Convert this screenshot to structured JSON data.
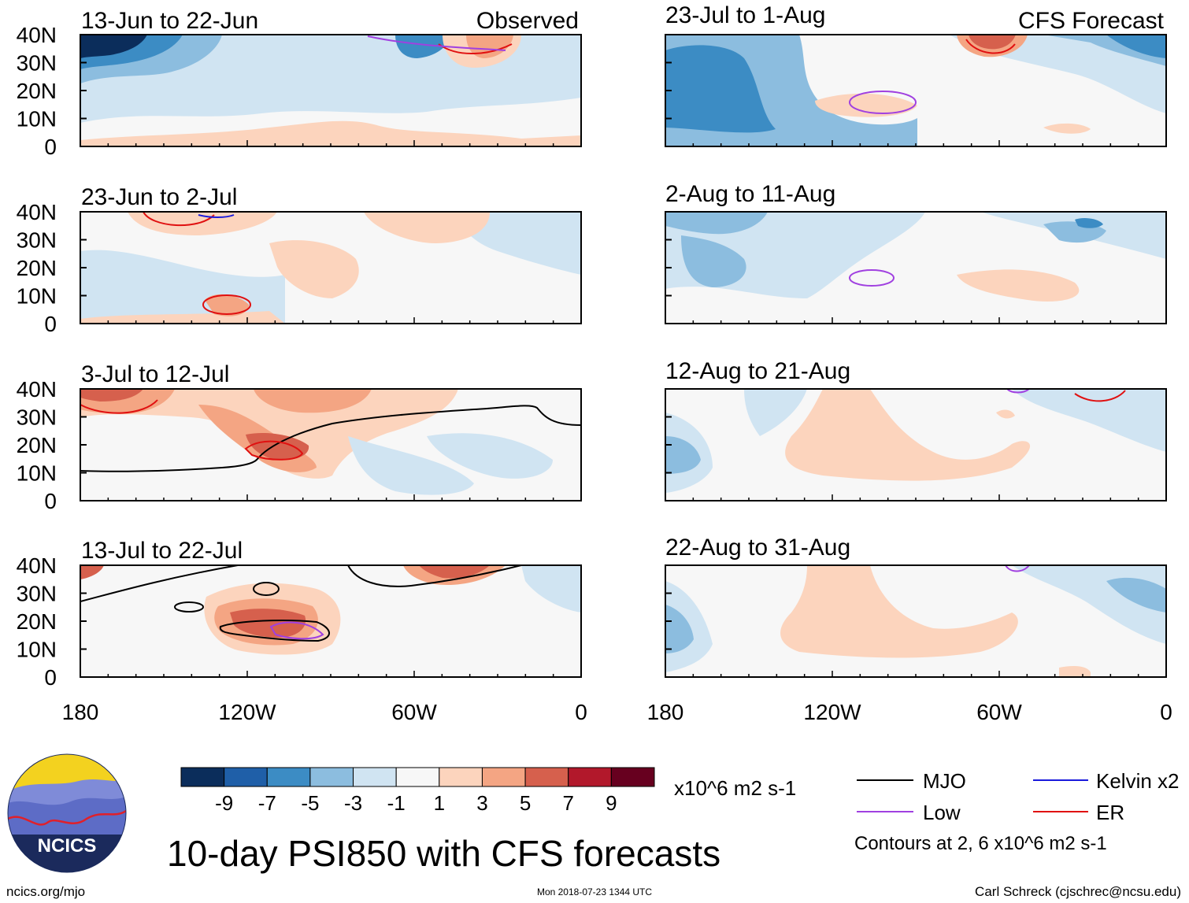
{
  "chart_data": {
    "type": "heatmap",
    "title": "10-day PSI850 with CFS forecasts",
    "variable": "PSI850 anomaly",
    "units": "x10^6 m2 s-1",
    "columns": [
      {
        "label": "Observed",
        "panels": [
          {
            "title": "13-Jun to 22-Jun"
          },
          {
            "title": "23-Jun to 2-Jul"
          },
          {
            "title": "3-Jul to 12-Jul"
          },
          {
            "title": "13-Jul to 22-Jul"
          }
        ]
      },
      {
        "label": "CFS Forecast",
        "panels": [
          {
            "title": "23-Jul to 1-Aug"
          },
          {
            "title": "2-Aug to 11-Aug"
          },
          {
            "title": "12-Aug to 21-Aug"
          },
          {
            "title": "22-Aug to 31-Aug"
          }
        ]
      }
    ],
    "x_axis": {
      "range": [
        -180,
        0
      ],
      "ticks": [
        {
          "value": -180,
          "label": "180"
        },
        {
          "value": -120,
          "label": "120W"
        },
        {
          "value": -60,
          "label": "60W"
        },
        {
          "value": 0,
          "label": "0"
        }
      ]
    },
    "y_axis": {
      "range": [
        0,
        40
      ],
      "ticks": [
        {
          "value": 40,
          "label": "40N"
        },
        {
          "value": 30,
          "label": "30N"
        },
        {
          "value": 20,
          "label": "20N"
        },
        {
          "value": 10,
          "label": "10N"
        },
        {
          "value": 0,
          "label": "0"
        }
      ]
    },
    "colorbar": {
      "labels": [
        "-9",
        "-7",
        "-5",
        "-3",
        "-1",
        "1",
        "3",
        "5",
        "7",
        "9"
      ],
      "colors": [
        "#0b2d5b",
        "#1f5fa8",
        "#3c8cc4",
        "#8cbddf",
        "#d0e4f2",
        "#f7f7f7",
        "#fcd4bd",
        "#f4a583",
        "#d6604d",
        "#b2182b",
        "#67001f"
      ]
    },
    "legend": [
      {
        "label": "MJO",
        "color": "#000000"
      },
      {
        "label": "Kelvin x2",
        "color": "#1a1adc"
      },
      {
        "label": "Low",
        "color": "#a040e0"
      },
      {
        "label": "ER",
        "color": "#e01010"
      }
    ],
    "contour_note": "Contours at 2, 6 x10^6 m2 s-1"
  },
  "footer": {
    "logo_text": "NCICS",
    "url": "ncics.org/mjo",
    "timestamp": "Mon 2018-07-23 1344 UTC",
    "author": "Carl Schreck (cjschrec@ncsu.edu)"
  }
}
